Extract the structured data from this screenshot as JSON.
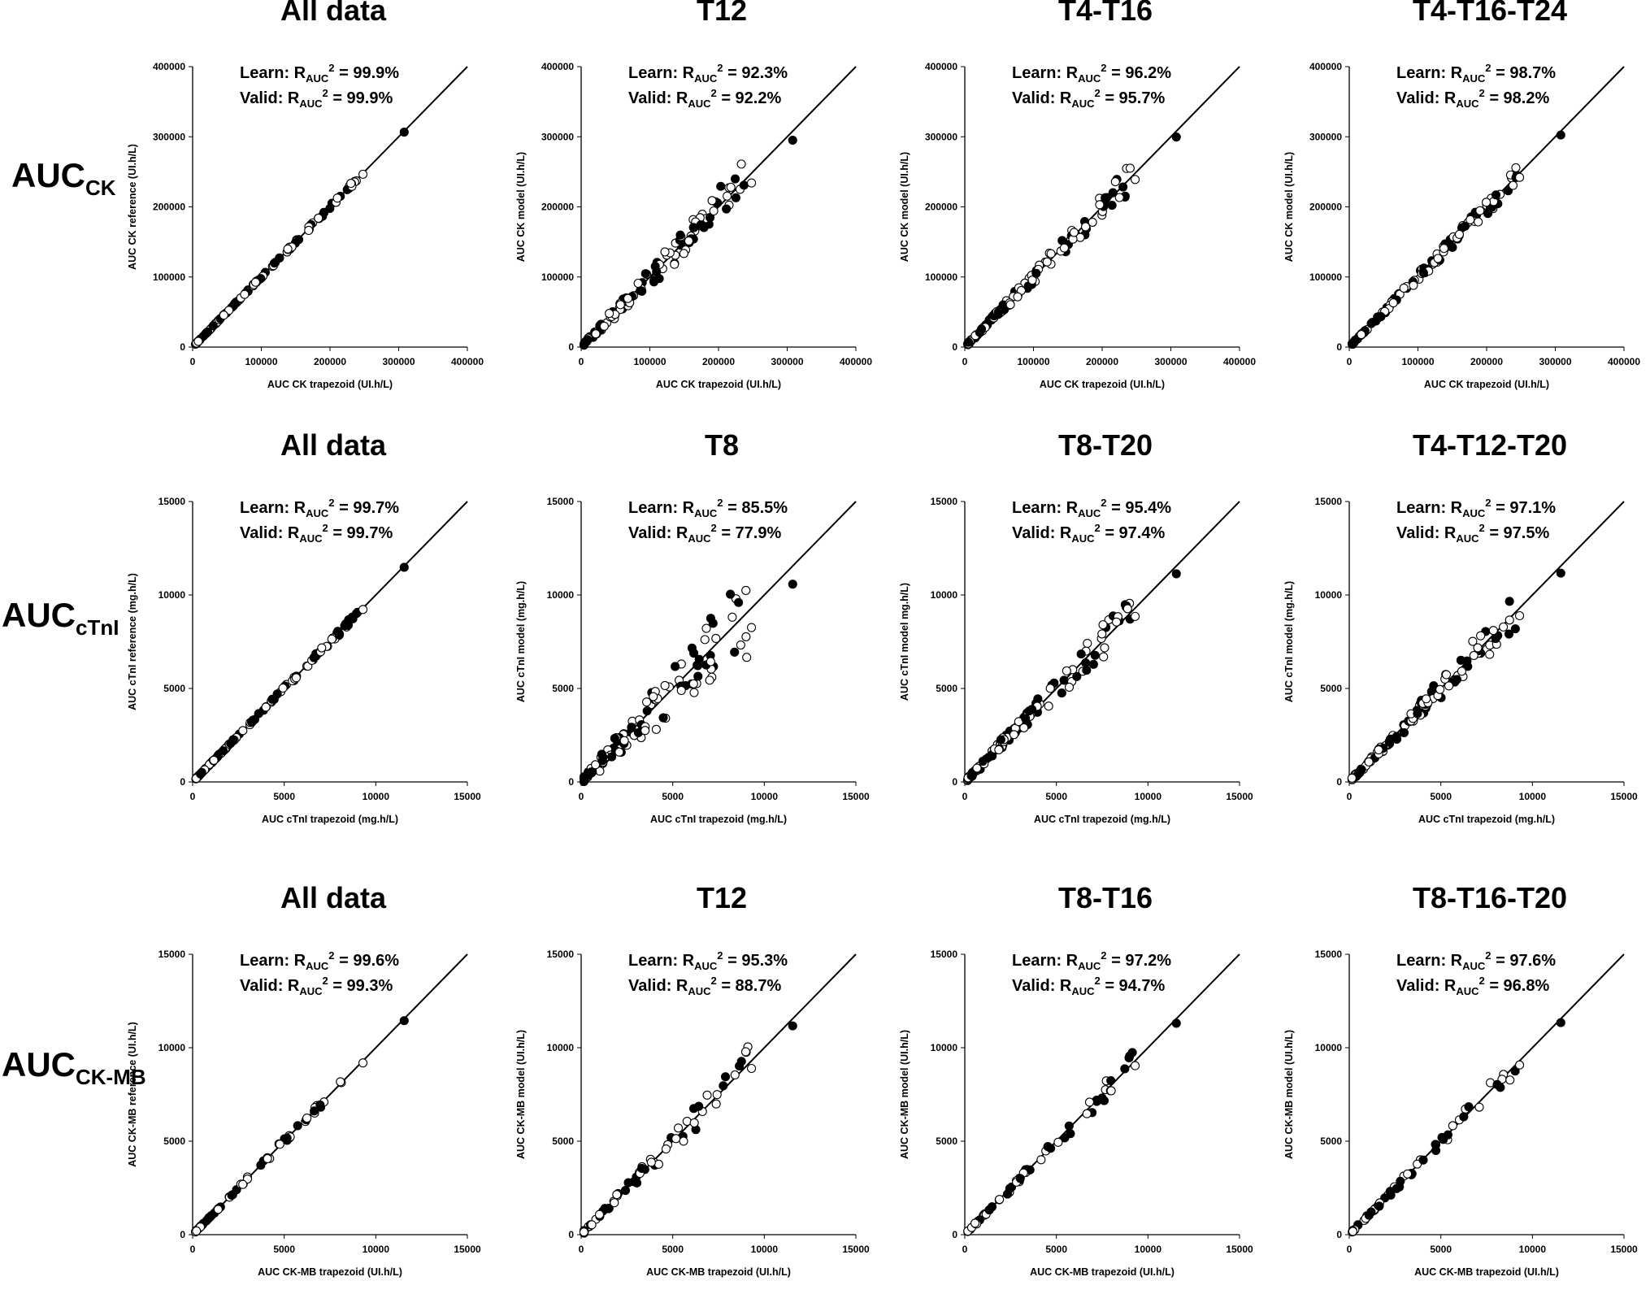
{
  "row_labels": [
    {
      "main": "AUC",
      "sub": "CK"
    },
    {
      "main": "AUC",
      "sub": "cTnI"
    },
    {
      "main": "AUC",
      "sub": "CK-MB"
    }
  ],
  "colors": {
    "filled": "#000000",
    "open_fill": "#ffffff",
    "line": "#000000"
  },
  "chart_data": [
    {
      "type": "scatter",
      "title": "All data",
      "learn_text": "Learn:",
      "valid_text": "Valid:",
      "r_main": "R",
      "r_sub": "AUC",
      "r_sup": "2",
      "learn": "= 99.9%",
      "valid": "= 99.9%",
      "xlabel": "AUC CK trapezoid (UI.h/L)",
      "ylabel": "AUC CK reference (UI.h/L)",
      "xlim": [
        0,
        400000
      ],
      "ylim": [
        0,
        400000
      ],
      "ticks": [
        0,
        100000,
        200000,
        300000,
        400000
      ],
      "tick_labels": [
        "0",
        "100000",
        "200000",
        "300000",
        "400000"
      ],
      "identity_line": true
    },
    {
      "type": "scatter",
      "title": "T12",
      "learn_text": "Learn:",
      "valid_text": "Valid:",
      "r_main": "R",
      "r_sub": "AUC",
      "r_sup": "2",
      "learn": "= 92.3%",
      "valid": "= 92.2%",
      "xlabel": "AUC CK trapezoid (UI.h/L)",
      "ylabel": "AUC CK model (UI.h/L)",
      "xlim": [
        0,
        400000
      ],
      "ylim": [
        0,
        400000
      ],
      "ticks": [
        0,
        100000,
        200000,
        300000,
        400000
      ],
      "tick_labels": [
        "0",
        "100000",
        "200000",
        "300000",
        "400000"
      ],
      "identity_line": true
    },
    {
      "type": "scatter",
      "title": "T4-T16",
      "learn_text": "Learn:",
      "valid_text": "Valid:",
      "r_main": "R",
      "r_sub": "AUC",
      "r_sup": "2",
      "learn": "= 96.2%",
      "valid": "= 95.7%",
      "xlabel": "AUC CK trapezoid (UI.h/L)",
      "ylabel": "AUC CK model (UI.h/L)",
      "xlim": [
        0,
        400000
      ],
      "ylim": [
        0,
        400000
      ],
      "ticks": [
        0,
        100000,
        200000,
        300000,
        400000
      ],
      "tick_labels": [
        "0",
        "100000",
        "200000",
        "300000",
        "400000"
      ],
      "identity_line": true
    },
    {
      "type": "scatter",
      "title": "T4-T16-T24",
      "learn_text": "Learn:",
      "valid_text": "Valid:",
      "r_main": "R",
      "r_sub": "AUC",
      "r_sup": "2",
      "learn": "= 98.7%",
      "valid": "= 98.2%",
      "xlabel": "AUC CK trapezoid (UI.h/L)",
      "ylabel": "AUC CK model (UI.h/L)",
      "xlim": [
        0,
        400000
      ],
      "ylim": [
        0,
        400000
      ],
      "ticks": [
        0,
        100000,
        200000,
        300000,
        400000
      ],
      "tick_labels": [
        "0",
        "100000",
        "200000",
        "300000",
        "400000"
      ],
      "identity_line": true
    },
    {
      "type": "scatter",
      "title": "All data",
      "learn_text": "Learn:",
      "valid_text": "Valid:",
      "r_main": "R",
      "r_sub": "AUC",
      "r_sup": "2",
      "learn": "= 99.7%",
      "valid": "= 99.7%",
      "xlabel": "AUC cTnI trapezoid (mg.h/L)",
      "ylabel": "AUC cTnI reference (mg.h/L)",
      "xlim": [
        0,
        15000
      ],
      "ylim": [
        0,
        15000
      ],
      "ticks": [
        0,
        5000,
        10000,
        15000
      ],
      "tick_labels": [
        "0",
        "5000",
        "10000",
        "15000"
      ],
      "identity_line": true
    },
    {
      "type": "scatter",
      "title": "T8",
      "learn_text": "Learn:",
      "valid_text": "Valid:",
      "r_main": "R",
      "r_sub": "AUC",
      "r_sup": "2",
      "learn": "= 85.5%",
      "valid": "= 77.9%",
      "xlabel": "AUC cTnI trapezoid (mg.h/L)",
      "ylabel": "AUC cTnI model (mg.h/L)",
      "xlim": [
        0,
        15000
      ],
      "ylim": [
        0,
        15000
      ],
      "ticks": [
        0,
        5000,
        10000,
        15000
      ],
      "tick_labels": [
        "0",
        "5000",
        "10000",
        "15000"
      ],
      "identity_line": true
    },
    {
      "type": "scatter",
      "title": "T8-T20",
      "learn_text": "Learn:",
      "valid_text": "Valid:",
      "r_main": "R",
      "r_sub": "AUC",
      "r_sup": "2",
      "learn": "= 95.4%",
      "valid": "= 97.4%",
      "xlabel": "AUC cTnI trapezoid (mg.h/L)",
      "ylabel": "AUC cTnI model mg.h/L)",
      "xlim": [
        0,
        15000
      ],
      "ylim": [
        0,
        15000
      ],
      "ticks": [
        0,
        5000,
        10000,
        15000
      ],
      "tick_labels": [
        "0",
        "5000",
        "10000",
        "15000"
      ],
      "identity_line": true
    },
    {
      "type": "scatter",
      "title": "T4-T12-T20",
      "learn_text": "Learn:",
      "valid_text": "Valid:",
      "r_main": "R",
      "r_sub": "AUC",
      "r_sup": "2",
      "learn": "= 97.1%",
      "valid": "= 97.5%",
      "xlabel": "AUC cTnI trapezoid (mg.h/L)",
      "ylabel": "AUC cTnI model (mg.h/L)",
      "xlim": [
        0,
        15000
      ],
      "ylim": [
        0,
        15000
      ],
      "ticks": [
        0,
        5000,
        10000,
        15000
      ],
      "tick_labels": [
        "0",
        "5000",
        "10000",
        "15000"
      ],
      "identity_line": true
    },
    {
      "type": "scatter",
      "title": "All data",
      "learn_text": "Learn:",
      "valid_text": "Valid:",
      "r_main": "R",
      "r_sub": "AUC",
      "r_sup": "2",
      "learn": "= 99.6%",
      "valid": "= 99.3%",
      "xlabel": "AUC CK-MB trapezoid (UI.h/L)",
      "ylabel": "AUC CK-MB reference (UI.h/L)",
      "xlim": [
        0,
        15000
      ],
      "ylim": [
        0,
        15000
      ],
      "ticks": [
        0,
        5000,
        10000,
        15000
      ],
      "tick_labels": [
        "0",
        "5000",
        "10000",
        "15000"
      ],
      "identity_line": true
    },
    {
      "type": "scatter",
      "title": "T12",
      "learn_text": "Learn:",
      "valid_text": "Valid:",
      "r_main": "R",
      "r_sub": "AUC",
      "r_sup": "2",
      "learn": "= 95.3%",
      "valid": "= 88.7%",
      "xlabel": "AUC CK-MB trapezoid (UI.h/L)",
      "ylabel": "AUC CK-MB model (UI.h/L)",
      "xlim": [
        0,
        15000
      ],
      "ylim": [
        0,
        15000
      ],
      "ticks": [
        0,
        5000,
        10000,
        15000
      ],
      "tick_labels": [
        "0",
        "5000",
        "10000",
        "15000"
      ],
      "identity_line": true
    },
    {
      "type": "scatter",
      "title": "T8-T16",
      "learn_text": "Learn:",
      "valid_text": "Valid:",
      "r_main": "R",
      "r_sub": "AUC",
      "r_sup": "2",
      "learn": "= 97.2%",
      "valid": "= 94.7%",
      "xlabel": "AUC CK-MB trapezoid (UI.h/L)",
      "ylabel": "AUC CK-MB model (UI.h/L)",
      "xlim": [
        0,
        15000
      ],
      "ylim": [
        0,
        15000
      ],
      "ticks": [
        0,
        5000,
        10000,
        15000
      ],
      "tick_labels": [
        "0",
        "5000",
        "10000",
        "15000"
      ],
      "identity_line": true
    },
    {
      "type": "scatter",
      "title": "T8-T16-T20",
      "learn_text": "Learn:",
      "valid_text": "Valid:",
      "r_main": "R",
      "r_sub": "AUC",
      "r_sup": "2",
      "learn": "= 97.6%",
      "valid": "= 96.8%",
      "xlabel": "AUC CK-MB trapezoid (UI.h/L)",
      "ylabel": "AUC CK-MB model (UI.h/L)",
      "xlim": [
        0,
        15000
      ],
      "ylim": [
        0,
        15000
      ],
      "ticks": [
        0,
        5000,
        10000,
        15000
      ],
      "tick_labels": [
        "0",
        "5000",
        "10000",
        "15000"
      ],
      "identity_line": true
    }
  ]
}
